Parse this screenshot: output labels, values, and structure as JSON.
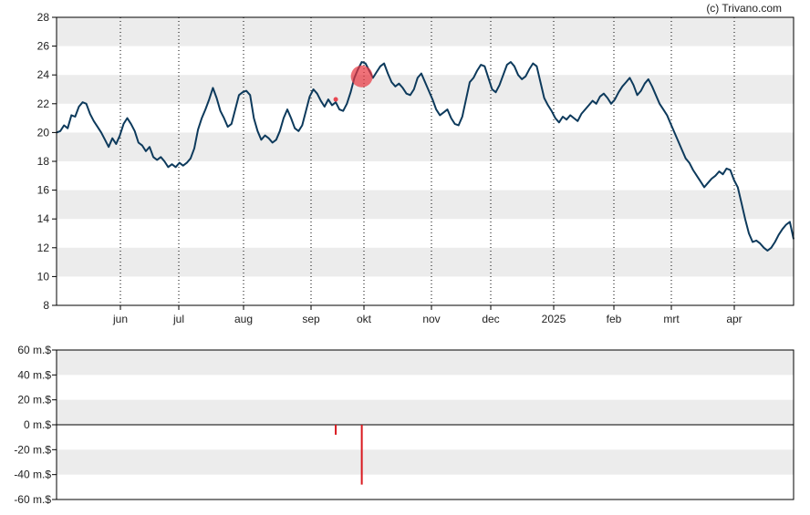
{
  "copyright": "(c) Trivano.com",
  "colors": {
    "price_line": "#0d3a5c",
    "band": "#ececec",
    "grid_dotted": "#000000",
    "trade_marker": "#e8343f",
    "volume_bar": "#d9191f",
    "axis": "#000000"
  },
  "chart_data": [
    {
      "type": "line",
      "x_ticks": [
        "jun",
        "jul",
        "aug",
        "sep",
        "okt",
        "nov",
        "dec",
        "2025",
        "feb",
        "mrt",
        "apr"
      ],
      "y_ticks": [
        "8",
        "10",
        "12",
        "14",
        "16",
        "18",
        "20",
        "22",
        "24",
        "26",
        "28"
      ],
      "ylim": [
        8,
        28
      ],
      "grid": "horizontal bands and dotted vertical month lines",
      "series": [
        {
          "values": [
            20.0,
            20.1,
            20.5,
            20.3,
            21.2,
            21.1,
            21.8,
            22.1,
            22.0,
            21.3,
            20.8,
            20.4,
            20.0,
            19.5,
            19.0,
            19.6,
            19.2,
            19.8,
            20.6,
            21.0,
            20.6,
            20.1,
            19.3,
            19.1,
            18.7,
            19.0,
            18.3,
            18.1,
            18.3,
            18.0,
            17.6,
            17.8,
            17.6,
            17.9,
            17.7,
            17.9,
            18.2,
            18.9,
            20.2,
            21.0,
            21.6,
            22.3,
            23.1,
            22.4,
            21.5,
            21.0,
            20.4,
            20.6,
            21.6,
            22.6,
            22.8,
            22.9,
            22.6,
            21.0,
            20.1,
            19.5,
            19.8,
            19.6,
            19.3,
            19.5,
            20.1,
            21.0,
            21.6,
            21.0,
            20.3,
            20.1,
            20.5,
            21.5,
            22.5,
            23.0,
            22.7,
            22.2,
            21.8,
            22.3,
            21.9,
            22.1,
            21.6,
            21.5,
            22.0,
            22.8,
            23.8,
            24.4,
            24.9,
            24.8,
            24.3,
            23.8,
            24.2,
            24.6,
            24.8,
            24.1,
            23.5,
            23.2,
            23.4,
            23.1,
            22.7,
            22.6,
            23.0,
            23.8,
            24.1,
            23.5,
            22.9,
            22.3,
            21.6,
            21.2,
            21.4,
            21.6,
            21.0,
            20.6,
            20.5,
            21.1,
            22.3,
            23.5,
            23.8,
            24.3,
            24.7,
            24.6,
            23.8,
            23.0,
            22.8,
            23.3,
            24.0,
            24.7,
            24.9,
            24.6,
            24.0,
            23.7,
            23.9,
            24.4,
            24.8,
            24.6,
            23.5,
            22.4,
            21.9,
            21.5,
            21.0,
            20.7,
            21.1,
            20.9,
            21.2,
            21.0,
            20.8,
            21.3,
            21.6,
            21.9,
            22.2,
            22.0,
            22.5,
            22.7,
            22.4,
            22.0,
            22.3,
            22.8,
            23.2,
            23.5,
            23.8,
            23.3,
            22.6,
            22.9,
            23.4,
            23.7,
            23.2,
            22.6,
            22.0,
            21.6,
            21.2,
            20.6,
            20.0,
            19.4,
            18.8,
            18.2,
            17.9,
            17.4,
            17.0,
            16.6,
            16.2,
            16.5,
            16.8,
            17.0,
            17.3,
            17.1,
            17.5,
            17.4,
            16.7,
            16.2,
            15.1,
            14.0,
            13.0,
            12.4,
            12.5,
            12.3,
            12.0,
            11.8,
            12.0,
            12.4,
            12.9,
            13.3,
            13.6,
            13.8,
            12.6
          ]
        }
      ],
      "markers": [
        {
          "x_index": 82,
          "y": 23.9,
          "size": "large"
        },
        {
          "x_index": 75,
          "y": 22.3,
          "size": "small"
        }
      ]
    },
    {
      "type": "bar",
      "y_ticks": [
        "60 m.$",
        "40 m.$",
        "20 m.$",
        "0 m.$",
        "-20 m.$",
        "-40 m.$",
        "-60 m.$"
      ],
      "ylim": [
        -60,
        60
      ],
      "grid": "horizontal bands",
      "bars": [
        {
          "x_index": 75,
          "value": -8
        },
        {
          "x_index": 82,
          "value": -48
        }
      ]
    }
  ]
}
